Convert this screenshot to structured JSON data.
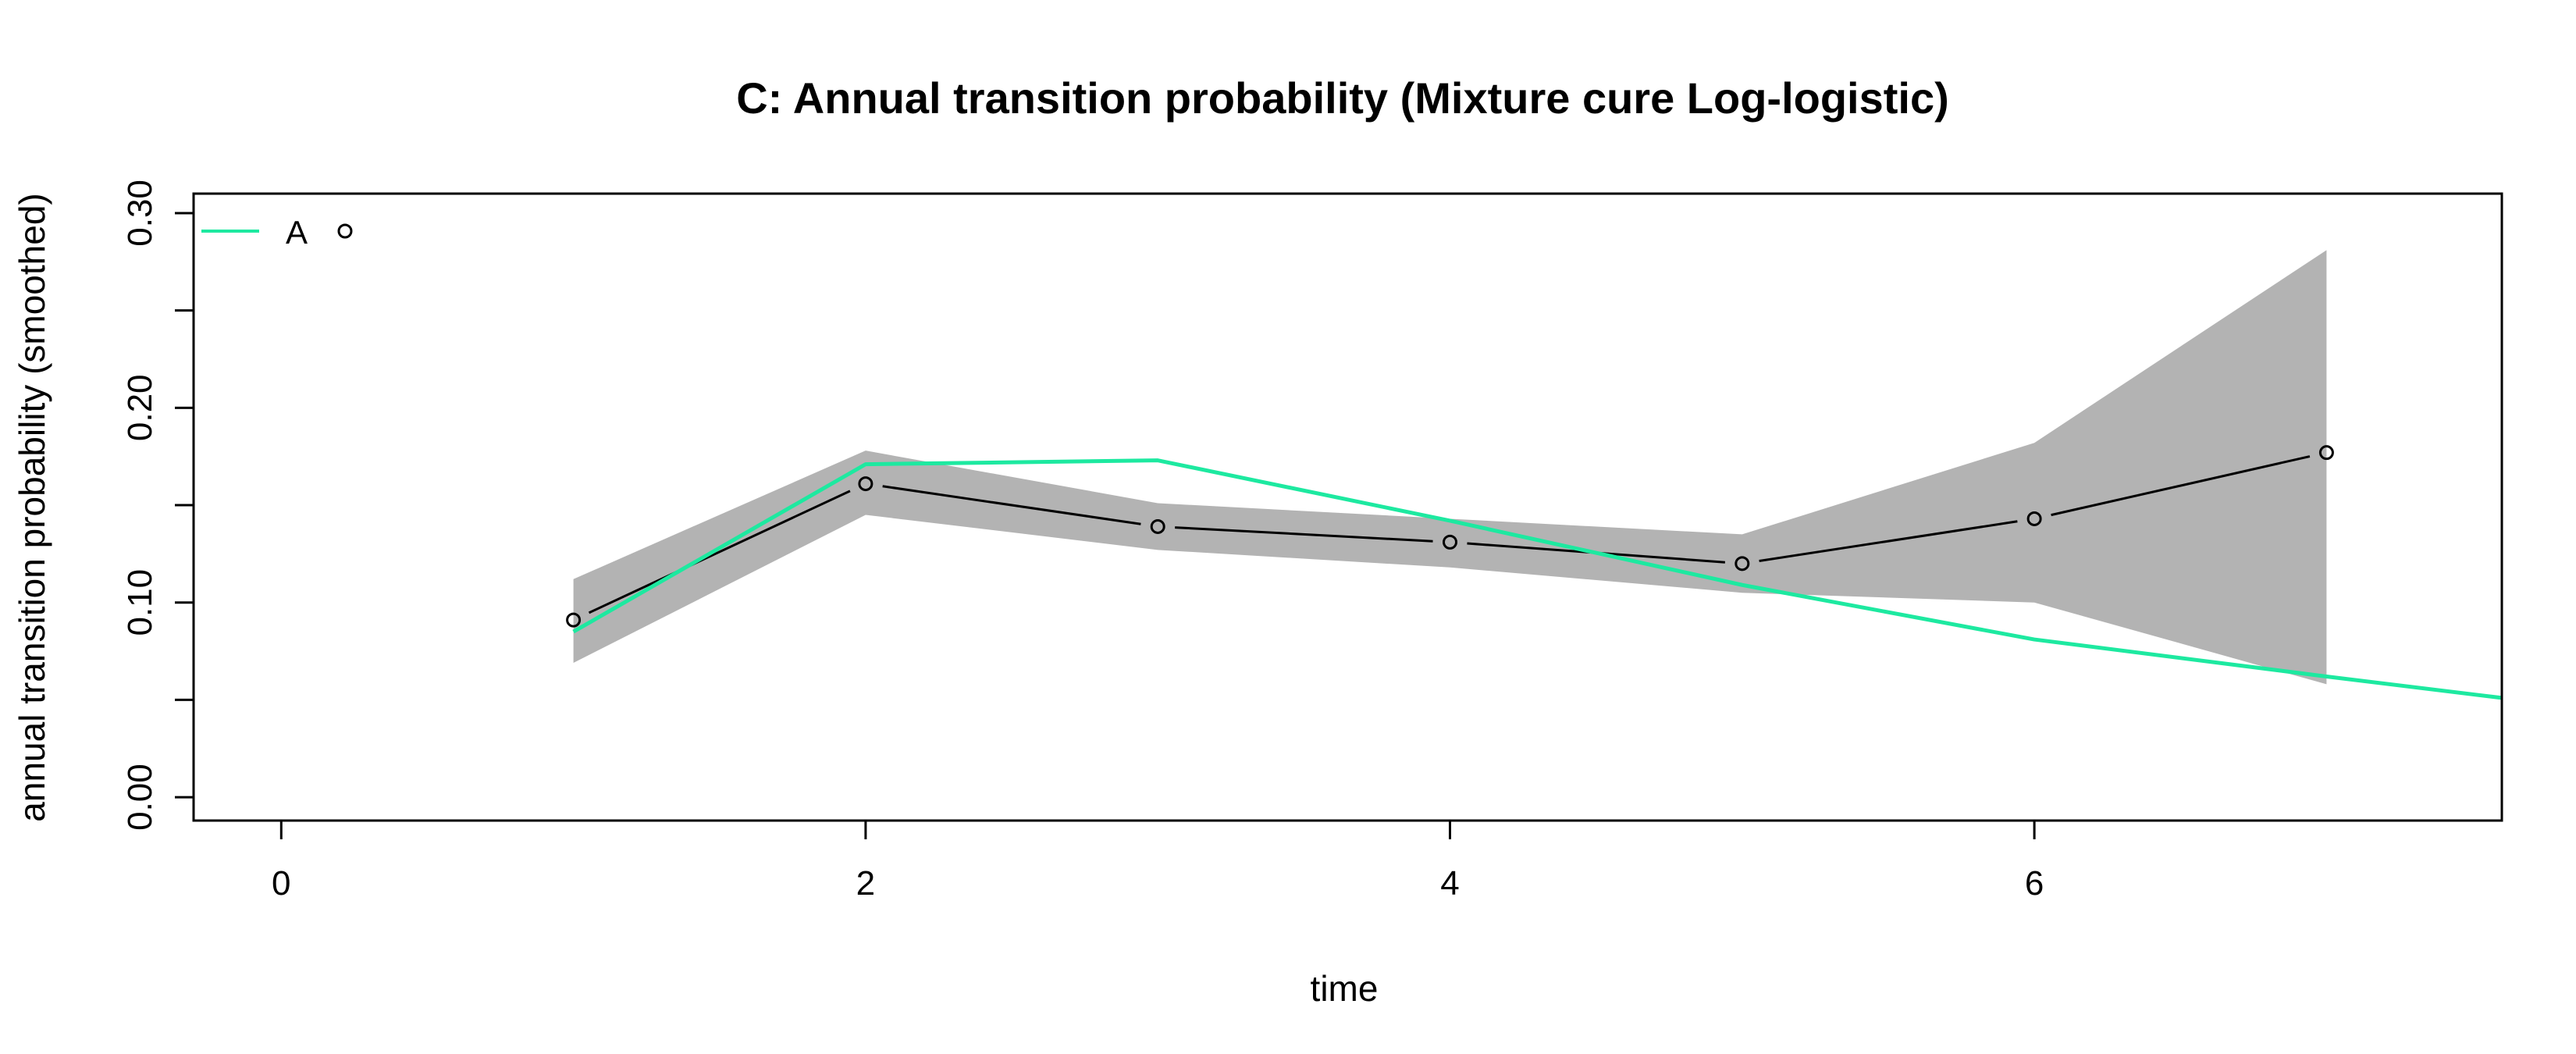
{
  "chart_data": {
    "type": "line",
    "title": "C: Annual transition probability (Mixture cure Log-logistic)",
    "xlabel": "time",
    "ylabel": "annual transition probability (smoothed)",
    "xlim": [
      -0.3,
      7.6
    ],
    "ylim": [
      -0.012,
      0.31
    ],
    "xticks": [
      0,
      2,
      4,
      6
    ],
    "yticks": [
      0.0,
      0.05,
      0.1,
      0.15,
      0.2,
      0.25,
      0.3
    ],
    "ytick_labels": [
      "0.00",
      "",
      "0.10",
      "",
      "0.20",
      "",
      "0.30"
    ],
    "observed": {
      "name": "observed",
      "x": [
        1,
        2,
        3,
        4,
        5,
        6,
        7
      ],
      "y": [
        0.091,
        0.161,
        0.139,
        0.131,
        0.12,
        0.143,
        0.177
      ],
      "lower": [
        0.069,
        0.145,
        0.127,
        0.118,
        0.105,
        0.1,
        0.058
      ],
      "upper": [
        0.112,
        0.178,
        0.151,
        0.143,
        0.135,
        0.182,
        0.281
      ]
    },
    "series": [
      {
        "name": "A",
        "x": [
          1,
          2,
          3,
          4,
          5,
          6,
          7,
          7.6
        ],
        "y": [
          0.085,
          0.171,
          0.173,
          0.142,
          0.109,
          0.081,
          0.062,
          0.051
        ]
      }
    ],
    "legend": {
      "position": "top-left",
      "entries": [
        "A"
      ]
    },
    "colors": {
      "fit": "#1de9a0",
      "band": "#b3b3b3",
      "observed": "#000000"
    }
  }
}
